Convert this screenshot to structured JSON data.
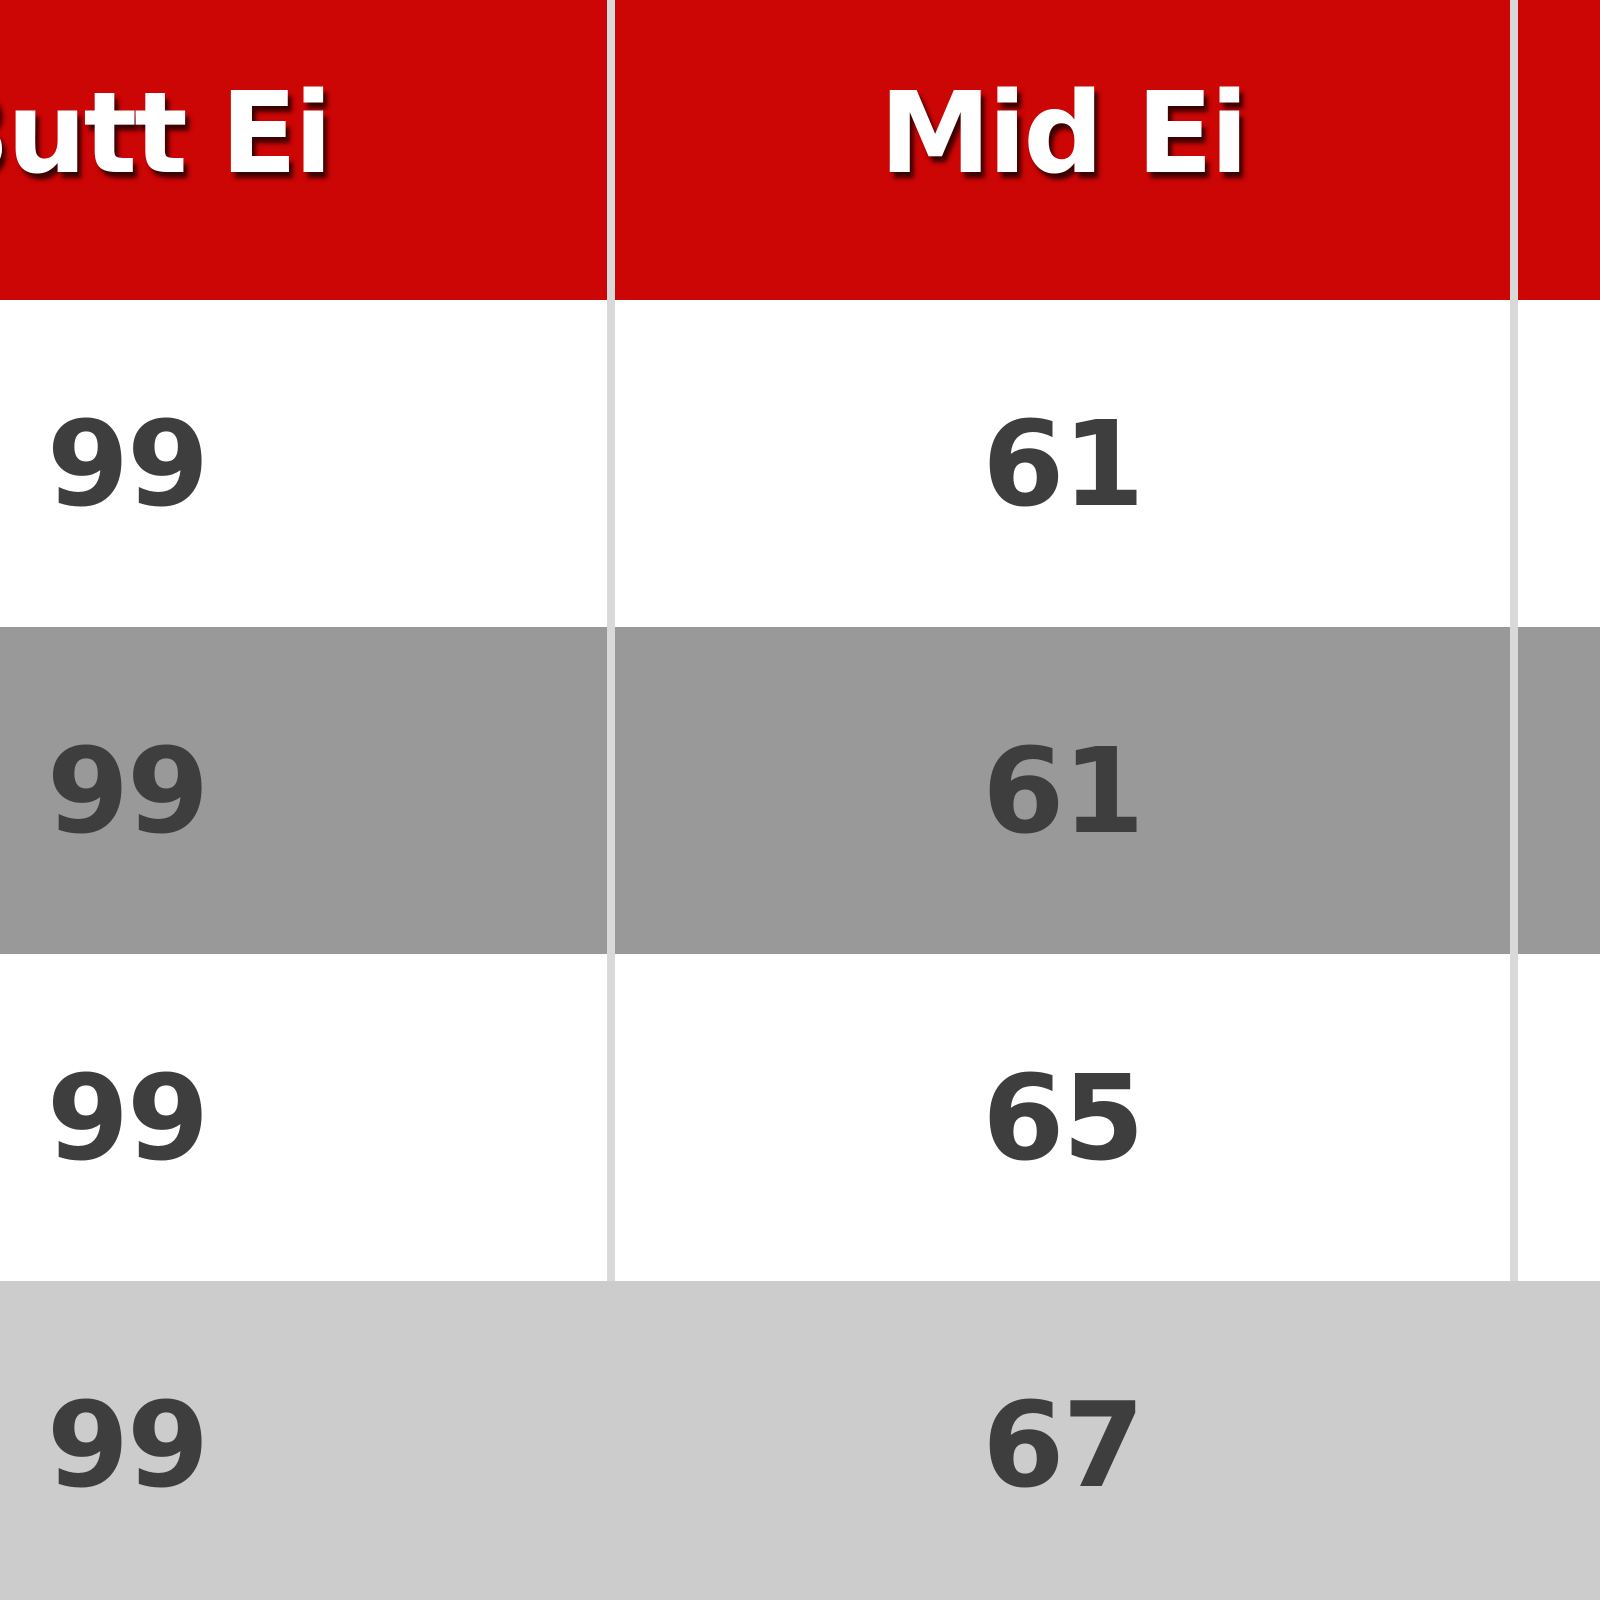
{
  "chart_data": {
    "type": "table",
    "title": "",
    "columns": [
      "Butt Ei",
      "Mid Ei"
    ],
    "rows": [
      [
        99,
        61
      ],
      [
        99,
        61
      ],
      [
        99,
        65
      ],
      [
        99,
        67
      ]
    ],
    "layout": {
      "header_position": "top",
      "row_striping": [
        "white",
        "dark-gray",
        "white",
        "light-gray"
      ],
      "note_visible_crop": "left column, header top, right column and bottom row are cut off by the viewport edges"
    }
  },
  "table": {
    "columns": [
      {
        "label": "Butt Ei"
      },
      {
        "label": "Mid Ei"
      },
      {
        "label": ""
      }
    ],
    "rows": [
      {
        "butt_ei": "99",
        "mid_ei": "61",
        "next": ""
      },
      {
        "butt_ei": "99",
        "mid_ei": "61",
        "next": ""
      },
      {
        "butt_ei": "99",
        "mid_ei": "65",
        "next": ""
      },
      {
        "butt_ei": "99",
        "mid_ei": "67",
        "next": ""
      }
    ],
    "colors": {
      "header_bg": "#cc0505",
      "header_text": "#ffffff",
      "row_white": "#ffffff",
      "row_dark_gray": "#999999",
      "row_light_gray": "#cccccc",
      "cell_text": "#3e3e3e",
      "column_divider": "#d9d9d9"
    }
  }
}
